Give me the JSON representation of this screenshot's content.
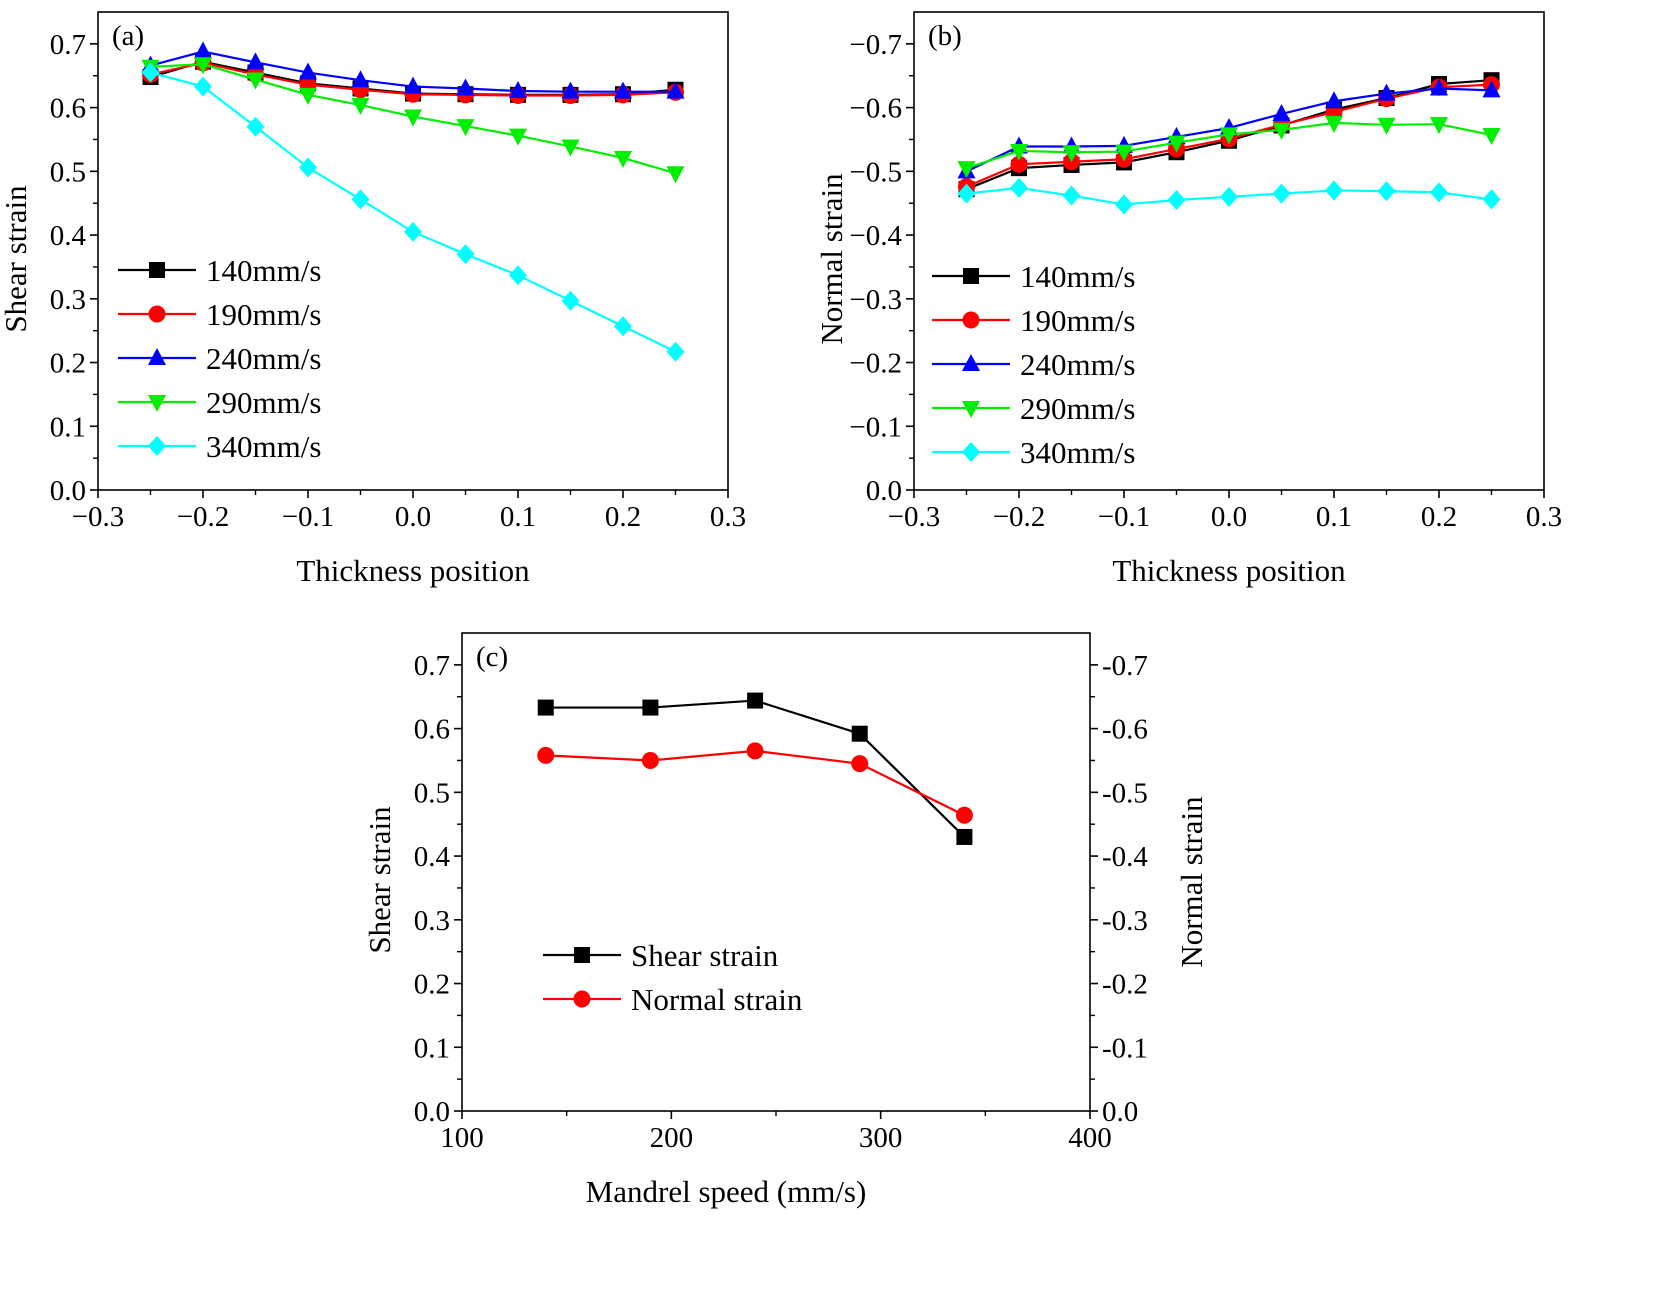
{
  "chart_data": [
    {
      "id": "a",
      "type": "line",
      "panel_label": "(a)",
      "xlabel": "Thickness position",
      "ylabel": "Shear strain",
      "xlim": [
        -0.3,
        0.3
      ],
      "ylim": [
        0,
        0.75
      ],
      "xticks": [
        "−0.3",
        "−0.2",
        "−0.1",
        "0.0",
        "0.1",
        "0.2",
        "0.3"
      ],
      "yticks": [
        "0.0",
        "0.1",
        "0.2",
        "0.3",
        "0.4",
        "0.5",
        "0.6",
        "0.7"
      ],
      "legend_position": "lower-left",
      "x": [
        -0.25,
        -0.2,
        -0.15,
        -0.1,
        -0.05,
        0.0,
        0.05,
        0.1,
        0.15,
        0.2,
        0.25
      ],
      "series": [
        {
          "name": "140mm/s",
          "color": "#000000",
          "marker": "square",
          "values": [
            0.648,
            0.672,
            0.655,
            0.638,
            0.63,
            0.622,
            0.621,
            0.62,
            0.62,
            0.621,
            0.628
          ]
        },
        {
          "name": "190mm/s",
          "color": "#ff0000",
          "marker": "circle",
          "values": [
            0.652,
            0.67,
            0.652,
            0.636,
            0.628,
            0.621,
            0.62,
            0.619,
            0.619,
            0.62,
            0.624
          ]
        },
        {
          "name": "240mm/s",
          "color": "#0000ff",
          "marker": "triangle-up",
          "values": [
            0.666,
            0.688,
            0.671,
            0.655,
            0.643,
            0.633,
            0.63,
            0.626,
            0.625,
            0.625,
            0.625
          ]
        },
        {
          "name": "290mm/s",
          "color": "#00ee00",
          "marker": "triangle-down",
          "values": [
            0.664,
            0.668,
            0.644,
            0.62,
            0.604,
            0.586,
            0.571,
            0.556,
            0.539,
            0.521,
            0.497
          ]
        },
        {
          "name": "340mm/s",
          "color": "#00ffff",
          "marker": "diamond",
          "values": [
            0.655,
            0.633,
            0.57,
            0.506,
            0.456,
            0.405,
            0.37,
            0.337,
            0.297,
            0.257,
            0.217
          ]
        }
      ]
    },
    {
      "id": "b",
      "type": "line",
      "panel_label": "(b)",
      "xlabel": "Thickness position",
      "ylabel": "Normal strain",
      "xlim": [
        -0.3,
        0.3
      ],
      "ylim": [
        0,
        0.75
      ],
      "note": "y axis shown with negative tick labels; values below are magnitudes plotted upward",
      "xticks": [
        "−0.3",
        "−0.2",
        "−0.1",
        "0.0",
        "0.1",
        "0.2",
        "0.3"
      ],
      "yticks": [
        "0.0",
        "−0.1",
        "−0.2",
        "−0.3",
        "−0.4",
        "−0.5",
        "−0.6",
        "−0.7"
      ],
      "legend_position": "lower-left",
      "x": [
        -0.25,
        -0.2,
        -0.15,
        -0.1,
        -0.05,
        0.0,
        0.05,
        0.1,
        0.15,
        0.2,
        0.25
      ],
      "series": [
        {
          "name": "140mm/s",
          "color": "#000000",
          "marker": "square",
          "values": [
            0.472,
            0.505,
            0.51,
            0.514,
            0.53,
            0.548,
            0.572,
            0.597,
            0.615,
            0.637,
            0.643
          ]
        },
        {
          "name": "190mm/s",
          "color": "#ff0000",
          "marker": "circle",
          "values": [
            0.476,
            0.511,
            0.515,
            0.519,
            0.535,
            0.551,
            0.573,
            0.593,
            0.614,
            0.632,
            0.636
          ]
        },
        {
          "name": "240mm/s",
          "color": "#0000ff",
          "marker": "triangle-up",
          "values": [
            0.5,
            0.539,
            0.539,
            0.54,
            0.554,
            0.568,
            0.59,
            0.61,
            0.622,
            0.63,
            0.627
          ]
        },
        {
          "name": "290mm/s",
          "color": "#00ee00",
          "marker": "triangle-down",
          "values": [
            0.505,
            0.532,
            0.53,
            0.531,
            0.545,
            0.558,
            0.565,
            0.576,
            0.573,
            0.574,
            0.557
          ]
        },
        {
          "name": "340mm/s",
          "color": "#00ffff",
          "marker": "diamond",
          "values": [
            0.465,
            0.474,
            0.462,
            0.448,
            0.455,
            0.46,
            0.465,
            0.47,
            0.469,
            0.467,
            0.456
          ]
        }
      ]
    },
    {
      "id": "c",
      "type": "line",
      "panel_label": "(c)",
      "xlabel": "Mandrel speed (mm/s)",
      "ylabel": "Shear strain",
      "ylabel_right": "Normal strain",
      "xlim": [
        100,
        400
      ],
      "ylim": [
        0,
        0.75
      ],
      "xticks": [
        "100",
        "200",
        "300",
        "400"
      ],
      "yticks": [
        "0.0",
        "0.1",
        "0.2",
        "0.3",
        "0.4",
        "0.5",
        "0.6",
        "0.7"
      ],
      "yticks_right": [
        "0.0",
        "-0.1",
        "-0.2",
        "-0.3",
        "-0.4",
        "-0.5",
        "-0.6",
        "-0.7"
      ],
      "legend_position": "lower-left",
      "x": [
        140,
        190,
        240,
        290,
        340
      ],
      "series": [
        {
          "name": "Shear strain",
          "color": "#000000",
          "marker": "square",
          "values": [
            0.633,
            0.633,
            0.644,
            0.592,
            0.43
          ]
        },
        {
          "name": "Normal strain",
          "color": "#ff0000",
          "marker": "circle",
          "values": [
            0.558,
            0.55,
            0.565,
            0.545,
            0.464
          ]
        }
      ]
    }
  ]
}
